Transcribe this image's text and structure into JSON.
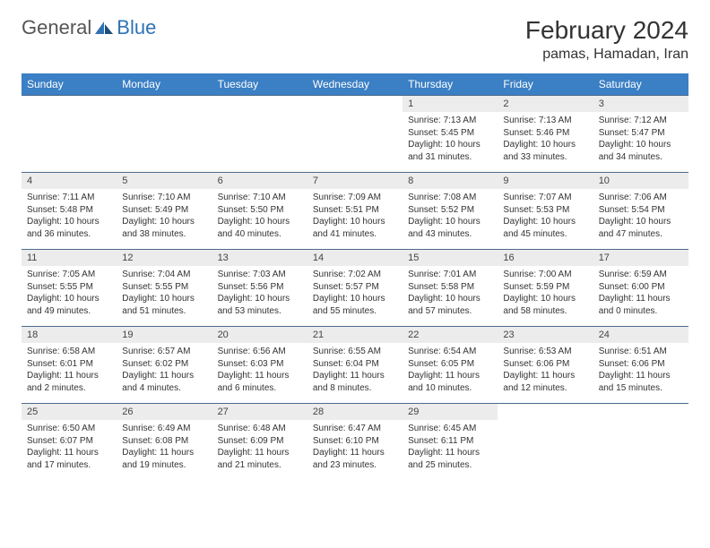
{
  "logo": {
    "text1": "General",
    "text2": "Blue",
    "color1": "#7a7a7a",
    "color2": "#2f72b5"
  },
  "title": "February 2024",
  "location": "pamas, Hamadan, Iran",
  "header_bg": "#3b7fc4",
  "daynum_bg": "#ececec",
  "border_color": "#4a6a8a",
  "days": [
    "Sunday",
    "Monday",
    "Tuesday",
    "Wednesday",
    "Thursday",
    "Friday",
    "Saturday"
  ],
  "weeks": [
    [
      null,
      null,
      null,
      null,
      {
        "n": "1",
        "sr": "Sunrise: 7:13 AM",
        "ss": "Sunset: 5:45 PM",
        "dl": "Daylight: 10 hours and 31 minutes."
      },
      {
        "n": "2",
        "sr": "Sunrise: 7:13 AM",
        "ss": "Sunset: 5:46 PM",
        "dl": "Daylight: 10 hours and 33 minutes."
      },
      {
        "n": "3",
        "sr": "Sunrise: 7:12 AM",
        "ss": "Sunset: 5:47 PM",
        "dl": "Daylight: 10 hours and 34 minutes."
      }
    ],
    [
      {
        "n": "4",
        "sr": "Sunrise: 7:11 AM",
        "ss": "Sunset: 5:48 PM",
        "dl": "Daylight: 10 hours and 36 minutes."
      },
      {
        "n": "5",
        "sr": "Sunrise: 7:10 AM",
        "ss": "Sunset: 5:49 PM",
        "dl": "Daylight: 10 hours and 38 minutes."
      },
      {
        "n": "6",
        "sr": "Sunrise: 7:10 AM",
        "ss": "Sunset: 5:50 PM",
        "dl": "Daylight: 10 hours and 40 minutes."
      },
      {
        "n": "7",
        "sr": "Sunrise: 7:09 AM",
        "ss": "Sunset: 5:51 PM",
        "dl": "Daylight: 10 hours and 41 minutes."
      },
      {
        "n": "8",
        "sr": "Sunrise: 7:08 AM",
        "ss": "Sunset: 5:52 PM",
        "dl": "Daylight: 10 hours and 43 minutes."
      },
      {
        "n": "9",
        "sr": "Sunrise: 7:07 AM",
        "ss": "Sunset: 5:53 PM",
        "dl": "Daylight: 10 hours and 45 minutes."
      },
      {
        "n": "10",
        "sr": "Sunrise: 7:06 AM",
        "ss": "Sunset: 5:54 PM",
        "dl": "Daylight: 10 hours and 47 minutes."
      }
    ],
    [
      {
        "n": "11",
        "sr": "Sunrise: 7:05 AM",
        "ss": "Sunset: 5:55 PM",
        "dl": "Daylight: 10 hours and 49 minutes."
      },
      {
        "n": "12",
        "sr": "Sunrise: 7:04 AM",
        "ss": "Sunset: 5:55 PM",
        "dl": "Daylight: 10 hours and 51 minutes."
      },
      {
        "n": "13",
        "sr": "Sunrise: 7:03 AM",
        "ss": "Sunset: 5:56 PM",
        "dl": "Daylight: 10 hours and 53 minutes."
      },
      {
        "n": "14",
        "sr": "Sunrise: 7:02 AM",
        "ss": "Sunset: 5:57 PM",
        "dl": "Daylight: 10 hours and 55 minutes."
      },
      {
        "n": "15",
        "sr": "Sunrise: 7:01 AM",
        "ss": "Sunset: 5:58 PM",
        "dl": "Daylight: 10 hours and 57 minutes."
      },
      {
        "n": "16",
        "sr": "Sunrise: 7:00 AM",
        "ss": "Sunset: 5:59 PM",
        "dl": "Daylight: 10 hours and 58 minutes."
      },
      {
        "n": "17",
        "sr": "Sunrise: 6:59 AM",
        "ss": "Sunset: 6:00 PM",
        "dl": "Daylight: 11 hours and 0 minutes."
      }
    ],
    [
      {
        "n": "18",
        "sr": "Sunrise: 6:58 AM",
        "ss": "Sunset: 6:01 PM",
        "dl": "Daylight: 11 hours and 2 minutes."
      },
      {
        "n": "19",
        "sr": "Sunrise: 6:57 AM",
        "ss": "Sunset: 6:02 PM",
        "dl": "Daylight: 11 hours and 4 minutes."
      },
      {
        "n": "20",
        "sr": "Sunrise: 6:56 AM",
        "ss": "Sunset: 6:03 PM",
        "dl": "Daylight: 11 hours and 6 minutes."
      },
      {
        "n": "21",
        "sr": "Sunrise: 6:55 AM",
        "ss": "Sunset: 6:04 PM",
        "dl": "Daylight: 11 hours and 8 minutes."
      },
      {
        "n": "22",
        "sr": "Sunrise: 6:54 AM",
        "ss": "Sunset: 6:05 PM",
        "dl": "Daylight: 11 hours and 10 minutes."
      },
      {
        "n": "23",
        "sr": "Sunrise: 6:53 AM",
        "ss": "Sunset: 6:06 PM",
        "dl": "Daylight: 11 hours and 12 minutes."
      },
      {
        "n": "24",
        "sr": "Sunrise: 6:51 AM",
        "ss": "Sunset: 6:06 PM",
        "dl": "Daylight: 11 hours and 15 minutes."
      }
    ],
    [
      {
        "n": "25",
        "sr": "Sunrise: 6:50 AM",
        "ss": "Sunset: 6:07 PM",
        "dl": "Daylight: 11 hours and 17 minutes."
      },
      {
        "n": "26",
        "sr": "Sunrise: 6:49 AM",
        "ss": "Sunset: 6:08 PM",
        "dl": "Daylight: 11 hours and 19 minutes."
      },
      {
        "n": "27",
        "sr": "Sunrise: 6:48 AM",
        "ss": "Sunset: 6:09 PM",
        "dl": "Daylight: 11 hours and 21 minutes."
      },
      {
        "n": "28",
        "sr": "Sunrise: 6:47 AM",
        "ss": "Sunset: 6:10 PM",
        "dl": "Daylight: 11 hours and 23 minutes."
      },
      {
        "n": "29",
        "sr": "Sunrise: 6:45 AM",
        "ss": "Sunset: 6:11 PM",
        "dl": "Daylight: 11 hours and 25 minutes."
      },
      null,
      null
    ]
  ]
}
